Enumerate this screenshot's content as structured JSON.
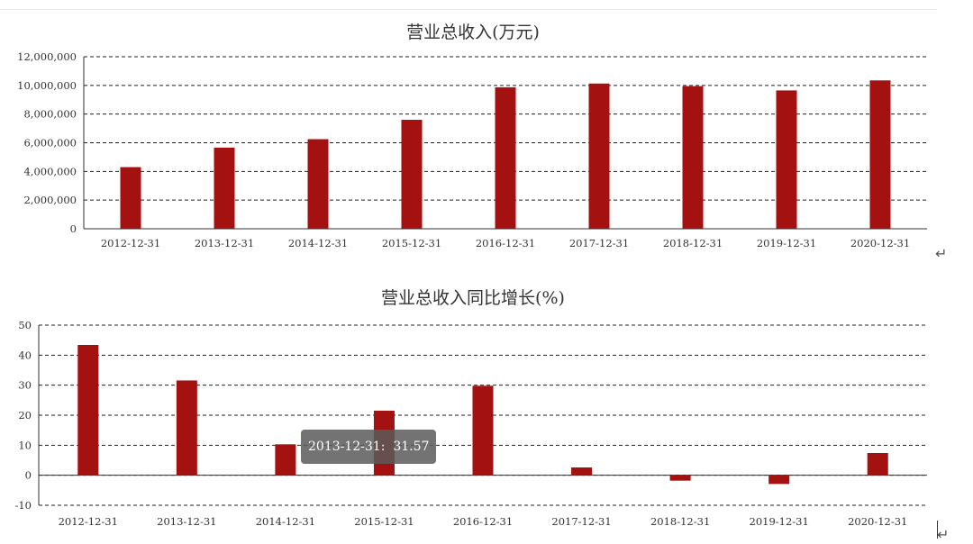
{
  "colors": {
    "bar": "#a31111",
    "grid": "#222222",
    "axis": "#333333",
    "tooltip_bg": "#5a5a5a"
  },
  "return_marks": [
    "↵",
    "↵"
  ],
  "tooltip": {
    "category": "2013-12-31",
    "value": "31.57"
  },
  "chart_data": [
    {
      "type": "bar",
      "title": "营业总收入(万元)",
      "xlabel": "",
      "ylabel": "",
      "categories": [
        "2012-12-31",
        "2013-12-31",
        "2014-12-31",
        "2015-12-31",
        "2016-12-31",
        "2017-12-31",
        "2018-12-31",
        "2019-12-31",
        "2020-12-31"
      ],
      "values": [
        4300000,
        5660000,
        6250000,
        7600000,
        9870000,
        10130000,
        9950000,
        9650000,
        10350000
      ],
      "ylim": [
        0,
        12000000
      ],
      "yticks": [
        0,
        2000000,
        4000000,
        6000000,
        8000000,
        10000000,
        12000000
      ],
      "ytick_labels": [
        "0",
        "2,000,000",
        "4,000,000",
        "6,000,000",
        "8,000,000",
        "10,000,000",
        "12,000,000"
      ],
      "grid": true,
      "grid_style": "dashed"
    },
    {
      "type": "bar",
      "title": "营业总收入同比增长(%)",
      "xlabel": "",
      "ylabel": "",
      "categories": [
        "2012-12-31",
        "2013-12-31",
        "2014-12-31",
        "2015-12-31",
        "2016-12-31",
        "2017-12-31",
        "2018-12-31",
        "2019-12-31",
        "2020-12-31"
      ],
      "values": [
        43.4,
        31.57,
        10.3,
        21.5,
        29.8,
        2.6,
        -1.8,
        -2.9,
        7.4
      ],
      "ylim": [
        -10,
        50
      ],
      "yticks": [
        -10,
        0,
        10,
        20,
        30,
        40,
        50
      ],
      "ytick_labels": [
        "-10",
        "0",
        "10",
        "20",
        "30",
        "40",
        "50"
      ],
      "grid": true,
      "grid_style": "dashed"
    }
  ]
}
